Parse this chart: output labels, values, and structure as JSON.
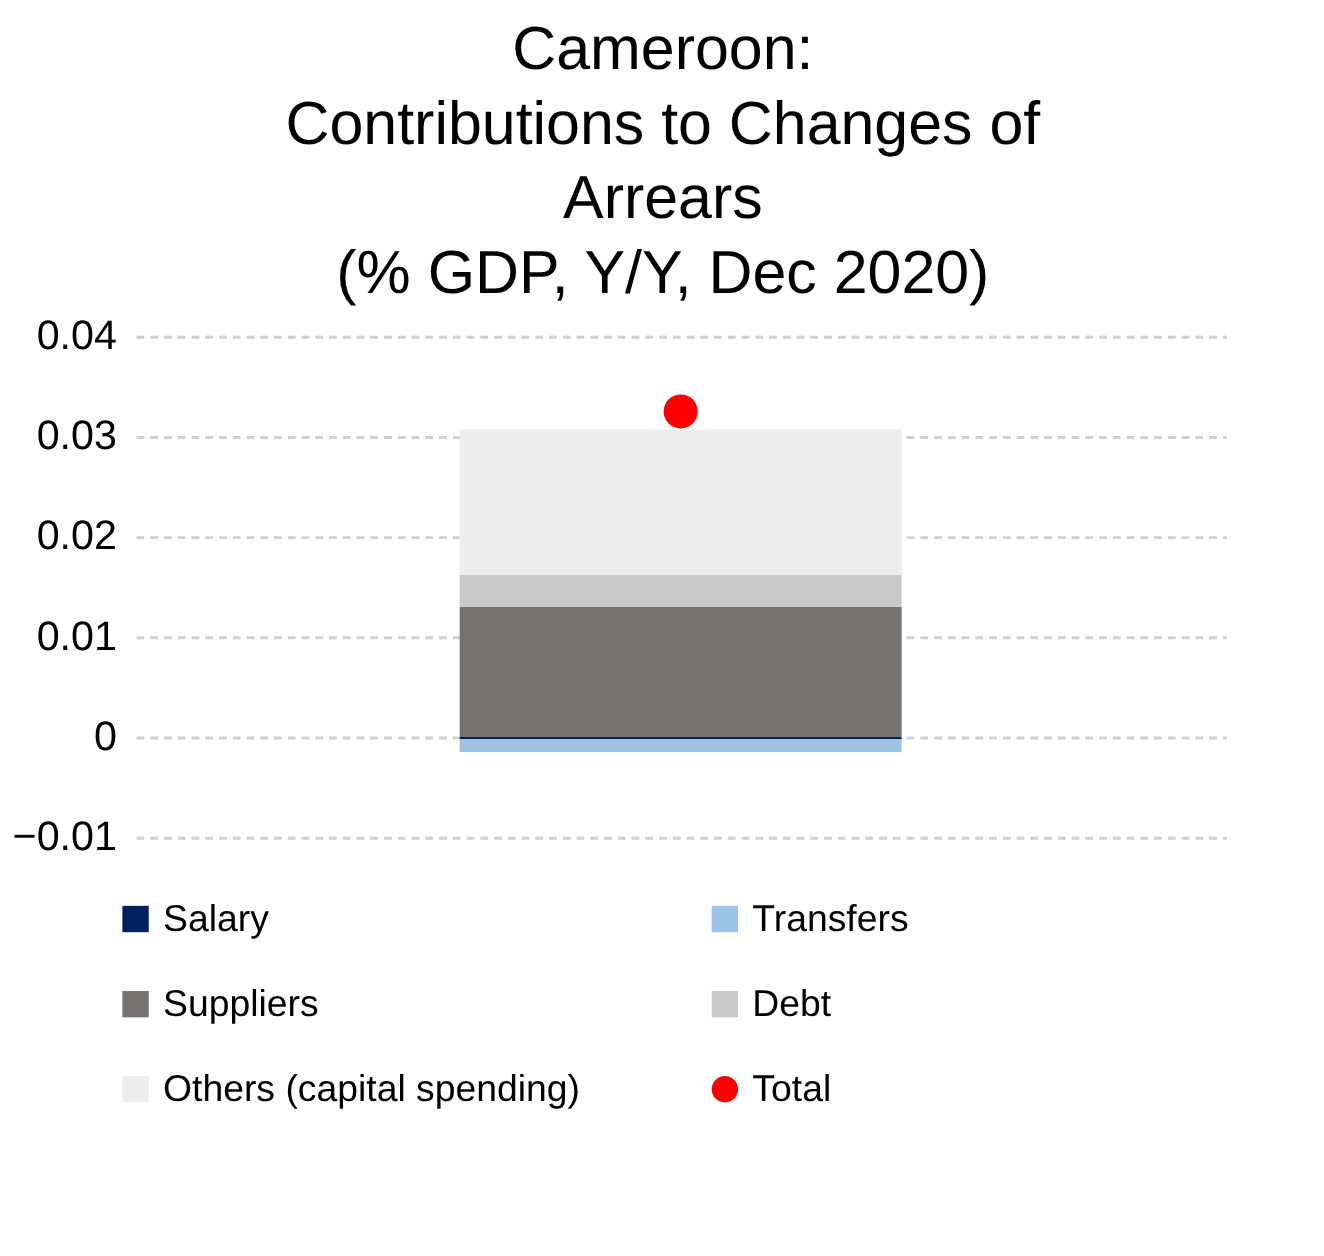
{
  "chart_data": {
    "type": "bar",
    "title": "Cameroon:\nContributions to Changes of\nArrears\n(% GDP, Y/Y, Dec 2020)",
    "categories": [
      null
    ],
    "stacked": true,
    "series": [
      {
        "name": "Salary",
        "color": "#002060",
        "values": [
          -0.0002
        ]
      },
      {
        "name": "Transfers",
        "color": "#9dc3e6",
        "values": [
          -0.0013
        ]
      },
      {
        "name": "Suppliers",
        "color": "#767171",
        "values": [
          0.013
        ]
      },
      {
        "name": "Debt",
        "color": "#c9c9c9",
        "values": [
          0.0032
        ]
      },
      {
        "name": "Others (capital spending)",
        "color": "#ededed",
        "values": [
          0.0145
        ]
      },
      {
        "name": "Total",
        "type": "scatter",
        "color": "#ff0000",
        "values": [
          0.0325
        ]
      }
    ],
    "ylim": [
      -0.01,
      0.04
    ],
    "yticks": [
      -0.01,
      0,
      0.01,
      0.02,
      0.03,
      0.04
    ],
    "grid": "y",
    "legend": "bottom"
  }
}
